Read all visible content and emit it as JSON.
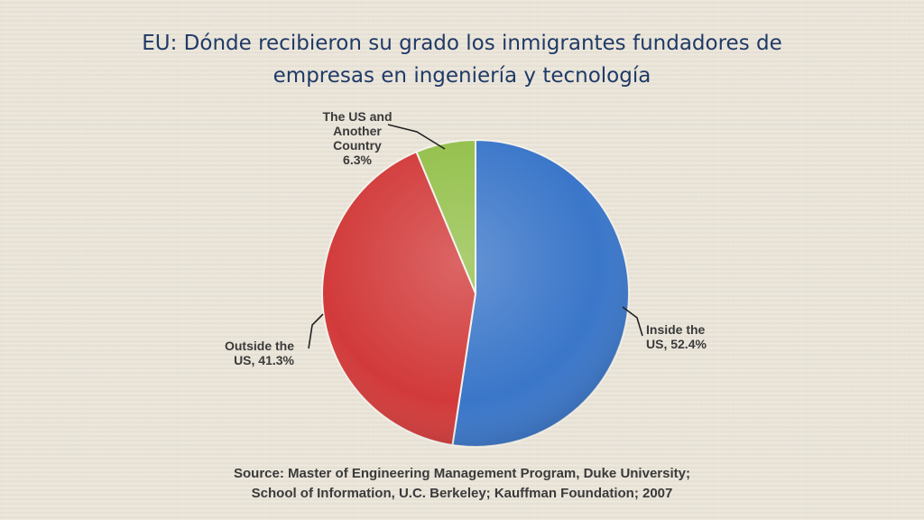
{
  "title": {
    "line1": "EU: Dónde recibieron su grado los inmigrantes fundadores de",
    "line2": "empresas en ingeniería y tecnología"
  },
  "chart_data": {
    "type": "pie",
    "slices": [
      {
        "label_lines": [
          "Inside the",
          "US, 52.4%"
        ],
        "value": 52.4,
        "color": "#3a76c9"
      },
      {
        "label_lines": [
          "Outside the",
          "US, 41.3%"
        ],
        "value": 41.3,
        "color": "#d23a3a"
      },
      {
        "label_lines": [
          "The US and",
          "Another",
          "Country",
          "6.3%"
        ],
        "value": 6.3,
        "color": "#93c04a"
      }
    ]
  },
  "source": {
    "line1": "Source: Master of Engineering Management Program, Duke University;",
    "line2": "School of Information, U.C. Berkeley; Kauffman Foundation; 2007"
  }
}
